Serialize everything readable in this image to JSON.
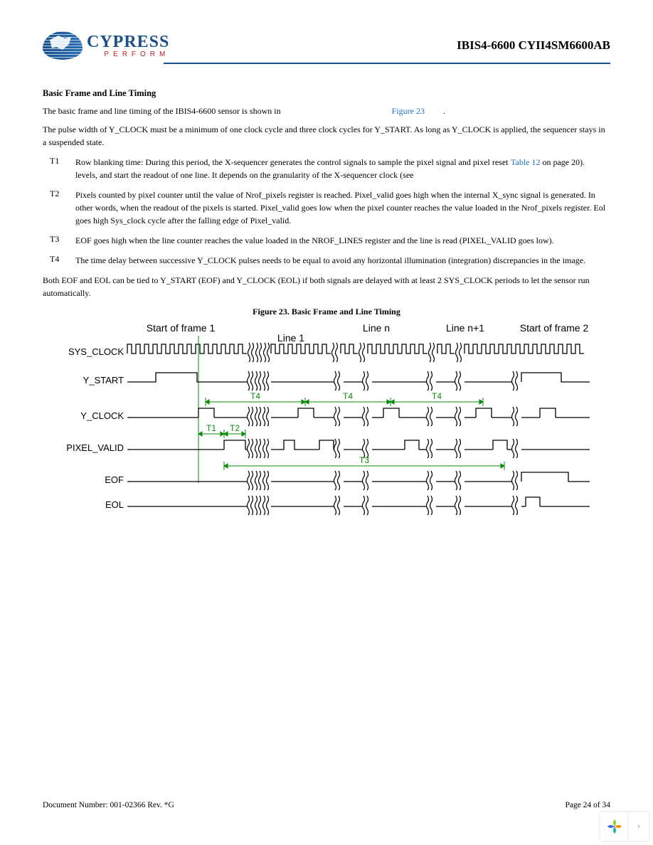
{
  "header": {
    "brand": "CYPRESS",
    "tagline": "PERFORM",
    "doc_title": "IBIS4-6600 CYII4SM6600AB"
  },
  "section": {
    "title": "Basic Frame and Line Timing",
    "p1_a": "The basic frame and line timing of the IBIS4-6600 sensor is shown in ",
    "p1_link": "Figure 23",
    "p1_b": ".",
    "p2": "The pulse width of Y_CLOCK must be a minimum of one clock cycle and three clock cycles for Y_START. As long as Y_CLOCK is applied, the sequencer stays in a suspended state."
  },
  "defs": {
    "t1_key": "T1",
    "t1_val": "Row blanking time: During this period, the X-sequencer generates the control signals to sample the pixel signal and pixel reset levels, and start the readout of one line. It depends on the granularity of the X-sequencer clock (see",
    "t1_link": "Table 12",
    "t1_extra": " on page 20).",
    "t2_key": "T2",
    "t2_val": "Pixels counted by pixel counter until the value of Nrof_pixels register is reached. Pixel_valid goes high when the internal X_sync signal is generated. In other words, when the readout of the pixels is started. Pixel_valid goes low when the pixel counter reaches the value loaded in the Nrof_pixels register. Eol goes high Sys_clock cycle after the falling edge of Pixel_valid.",
    "t3_key": "T3",
    "t3_val": "EOF goes high when the line counter reaches the value loaded in the NROF_LINES register and the line is read (PIXEL_VALID goes low).",
    "t4_key": "T4",
    "t4_val": "The time delay between successive Y_CLOCK pulses needs to be equal to avoid any horizontal illumination (integration) discrepancies in the image."
  },
  "closing": "Both EOF and EOL can be tied to Y_START (EOF) and Y_CLOCK (EOL) if both signals are delayed with at least 2 SYS_CLOCK periods to let the sensor run automatically.",
  "figure": {
    "caption": "Figure 23.  Basic Frame and Line Timing",
    "labels": {
      "start_frame_1": "Start of frame 1",
      "line_1": "Line 1",
      "line_n": "Line n",
      "line_np1": "Line n+1",
      "start_frame_2": "Start of frame 2"
    },
    "signals": [
      "SYS_CLOCK",
      "Y_START",
      "Y_CLOCK",
      "PIXEL_VALID",
      "EOF",
      "EOL"
    ],
    "annotations": [
      "T1",
      "T2",
      "T3",
      "T4"
    ],
    "colors": {
      "signal_stroke": "#000000",
      "annotation_stroke": "#0a8a0a",
      "annotation_text": "#0a8a0a",
      "signal_label": "#000000",
      "header_label": "#000000"
    },
    "stroke_width": 1.3,
    "font": {
      "signal_label_size": 13,
      "header_label_size": 14,
      "annotation_size": 12
    }
  },
  "footer": {
    "doc_number": "Document Number: 001-02366  Rev. *G",
    "page": "Page 24 of 34"
  }
}
